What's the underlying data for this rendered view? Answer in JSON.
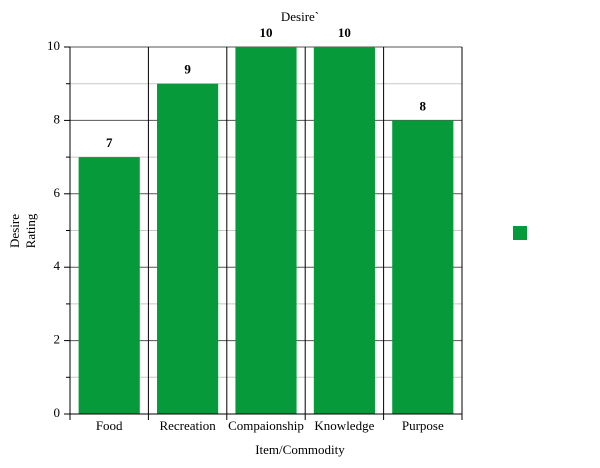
{
  "chart_data": {
    "type": "bar",
    "title": "Desire`",
    "categories": [
      "Food",
      "Recreation",
      "Compaionship",
      "Knowledge",
      "Purpose"
    ],
    "values": [
      7,
      9,
      10,
      10,
      8
    ],
    "color": "#079a3a",
    "xlabel": "Item/Commodity",
    "ylabel": [
      "Desire",
      "Rating"
    ],
    "ylim": [
      0,
      10
    ],
    "yticks": [
      0,
      2,
      4,
      6,
      8,
      10
    ],
    "minor_yticks": [
      1,
      3,
      5,
      7,
      9
    ],
    "grid": true
  }
}
